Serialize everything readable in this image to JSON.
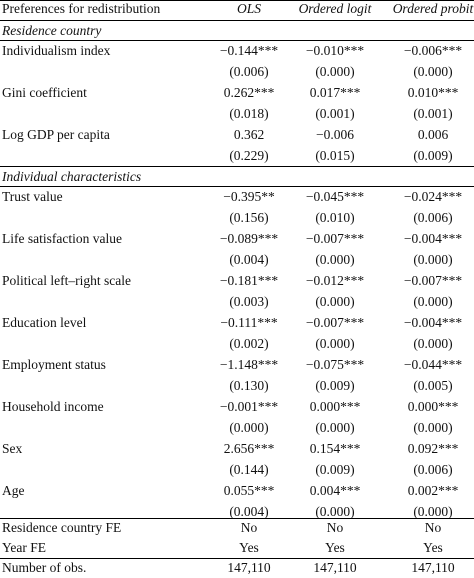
{
  "header": {
    "label": "Preferences for redistribution",
    "col1": "OLS",
    "col2": "Ordered logit",
    "col3": "Ordered probit"
  },
  "sections": {
    "residence": "Residence country",
    "individual": "Individual characteristics"
  },
  "rows": [
    {
      "label": "Individualism index",
      "v1": "−0.144***",
      "v2": "−0.010***",
      "v3": "−0.006***"
    },
    {
      "label": "",
      "v1": "(0.006)",
      "v2": "(0.000)",
      "v3": "(0.000)"
    },
    {
      "label": "Gini coefficient",
      "v1": "0.262***",
      "v2": "0.017***",
      "v3": "0.010***"
    },
    {
      "label": "",
      "v1": "(0.018)",
      "v2": "(0.001)",
      "v3": "(0.001)"
    },
    {
      "label": "Log GDP per capita",
      "v1": "0.362",
      "v2": "−0.006",
      "v3": "0.006"
    },
    {
      "label": "",
      "v1": "(0.229)",
      "v2": "(0.015)",
      "v3": "(0.009)"
    },
    {
      "label": "Trust value",
      "v1": "−0.395**",
      "v2": "−0.045***",
      "v3": "−0.024***"
    },
    {
      "label": "",
      "v1": "(0.156)",
      "v2": "(0.010)",
      "v3": "(0.006)"
    },
    {
      "label": "Life satisfaction value",
      "v1": "−0.089***",
      "v2": "−0.007***",
      "v3": "−0.004***"
    },
    {
      "label": "",
      "v1": "(0.004)",
      "v2": "(0.000)",
      "v3": "(0.000)"
    },
    {
      "label": "Political left–right scale",
      "v1": "−0.181***",
      "v2": "−0.012***",
      "v3": "−0.007***"
    },
    {
      "label": "",
      "v1": "(0.003)",
      "v2": "(0.000)",
      "v3": "(0.000)"
    },
    {
      "label": "Education level",
      "v1": "−0.111***",
      "v2": "−0.007***",
      "v3": "−0.004***"
    },
    {
      "label": "",
      "v1": "(0.002)",
      "v2": "(0.000)",
      "v3": "(0.000)"
    },
    {
      "label": "Employment status",
      "v1": "−1.148***",
      "v2": "−0.075***",
      "v3": "−0.044***"
    },
    {
      "label": "",
      "v1": "(0.130)",
      "v2": "(0.009)",
      "v3": "(0.005)"
    },
    {
      "label": "Household income",
      "v1": "−0.001***",
      "v2": "0.000***",
      "v3": "0.000***"
    },
    {
      "label": "",
      "v1": "(0.000)",
      "v2": "(0.000)",
      "v3": "(0.000)"
    },
    {
      "label": "Sex",
      "v1": "2.656***",
      "v2": "0.154***",
      "v3": "0.092***"
    },
    {
      "label": "",
      "v1": "(0.144)",
      "v2": "(0.009)",
      "v3": "(0.006)"
    },
    {
      "label": "Age",
      "v1": "0.055***",
      "v2": "0.004***",
      "v3": "0.002***"
    },
    {
      "label": "",
      "v1": "(0.004)",
      "v2": "(0.000)",
      "v3": "(0.000)"
    }
  ],
  "footer": [
    {
      "label": "Residence country FE",
      "v1": "No",
      "v2": "No",
      "v3": "No"
    },
    {
      "label": "Year FE",
      "v1": "Yes",
      "v2": "Yes",
      "v3": "Yes"
    },
    {
      "label": "Number of obs.",
      "v1": "147,110",
      "v2": "147,110",
      "v3": "147,110"
    }
  ]
}
